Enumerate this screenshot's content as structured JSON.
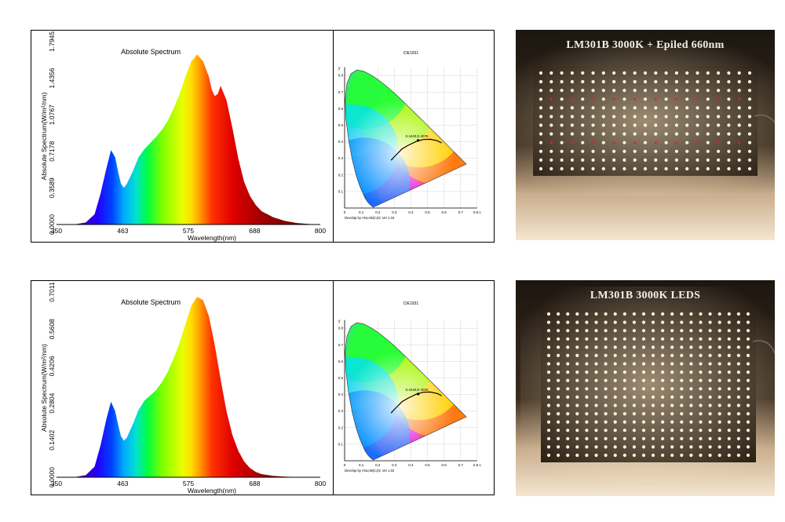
{
  "chart_data": [
    {
      "type": "area",
      "title": "Absolute Spectrum",
      "xlabel": "Wavelength(nm)",
      "ylabel": "Absolute Spectrum(W/m²/nm)",
      "xlim": [
        350,
        800
      ],
      "ylim": [
        0,
        1.7945
      ],
      "x_ticks": [
        "350",
        "463",
        "575",
        "688",
        "800"
      ],
      "y_ticks": [
        "0.0000",
        "0.3589",
        "0.7178",
        "1.0767",
        "1.4356",
        "1.7945"
      ],
      "x": [
        380,
        400,
        415,
        425,
        435,
        443,
        450,
        455,
        460,
        465,
        470,
        480,
        490,
        500,
        510,
        520,
        530,
        540,
        550,
        560,
        570,
        580,
        590,
        600,
        610,
        615,
        620,
        625,
        630,
        640,
        650,
        660,
        670,
        680,
        690,
        700,
        720,
        740,
        760,
        780,
        800
      ],
      "y": [
        0,
        0.02,
        0.1,
        0.3,
        0.55,
        0.73,
        0.66,
        0.52,
        0.4,
        0.36,
        0.4,
        0.52,
        0.66,
        0.74,
        0.8,
        0.86,
        0.93,
        1.02,
        1.14,
        1.28,
        1.45,
        1.6,
        1.67,
        1.6,
        1.45,
        1.32,
        1.26,
        1.28,
        1.36,
        1.22,
        0.95,
        0.65,
        0.42,
        0.28,
        0.19,
        0.13,
        0.07,
        0.035,
        0.015,
        0.005,
        0
      ]
    },
    {
      "type": "area",
      "title": "Absolute Spectrum",
      "xlabel": "Wavelength(nm)",
      "ylabel": "Absolute Spectrum(W/m²/nm)",
      "xlim": [
        350,
        800
      ],
      "ylim": [
        0,
        0.7011
      ],
      "x_ticks": [
        "350",
        "463",
        "575",
        "688",
        "800"
      ],
      "y_ticks": [
        "0.0000",
        "0.1402",
        "0.2804",
        "0.4206",
        "0.5608",
        "0.7011"
      ],
      "x": [
        380,
        400,
        415,
        425,
        435,
        443,
        450,
        455,
        460,
        465,
        470,
        480,
        490,
        500,
        510,
        520,
        530,
        540,
        550,
        560,
        570,
        580,
        590,
        600,
        610,
        620,
        630,
        640,
        650,
        660,
        670,
        680,
        690,
        700,
        720,
        740,
        760,
        780,
        800
      ],
      "y": [
        0,
        0.008,
        0.04,
        0.12,
        0.22,
        0.286,
        0.25,
        0.2,
        0.155,
        0.138,
        0.15,
        0.2,
        0.255,
        0.29,
        0.31,
        0.33,
        0.36,
        0.4,
        0.45,
        0.51,
        0.58,
        0.65,
        0.683,
        0.67,
        0.61,
        0.5,
        0.37,
        0.25,
        0.16,
        0.1,
        0.06,
        0.035,
        0.02,
        0.012,
        0.005,
        0.002,
        0.001,
        0,
        0
      ]
    }
  ],
  "cie": [
    {
      "title": "CIE1931",
      "point_label": "0.4440,0.4076",
      "point": [
        0.444,
        0.408
      ],
      "credit": "Develop by ANLAB(CJ)C Ver 1.02",
      "x_axis_label": "x",
      "y_axis_label": "y",
      "x_ticks": [
        "0",
        "0.1",
        "0.2",
        "0.3",
        "0.4",
        "0.5",
        "0.6",
        "0.7",
        "0.8 x"
      ],
      "y_ticks": [
        "0.1",
        "0.2",
        "0.3",
        "0.4",
        "0.5",
        "0.6",
        "0.7",
        "0.8"
      ]
    },
    {
      "title": "CIE1931",
      "point_label": "0.4440,0.4029",
      "point": [
        0.444,
        0.403
      ],
      "credit": "Develop by ANLAB(CJ)C Ver 1.02",
      "x_axis_label": "x",
      "y_axis_label": "y",
      "x_ticks": [
        "0",
        "0.1",
        "0.2",
        "0.3",
        "0.4",
        "0.5",
        "0.6",
        "0.7",
        "0.8 x"
      ],
      "y_ticks": [
        "0.1",
        "0.2",
        "0.3",
        "0.4",
        "0.5",
        "0.6",
        "0.7",
        "0.8"
      ]
    }
  ],
  "photos": [
    {
      "title": "LM301B 3000K + Epiled 660nm",
      "has_red_rows": true
    },
    {
      "title": "LM301B 3000K LEDS",
      "has_red_rows": false
    }
  ]
}
